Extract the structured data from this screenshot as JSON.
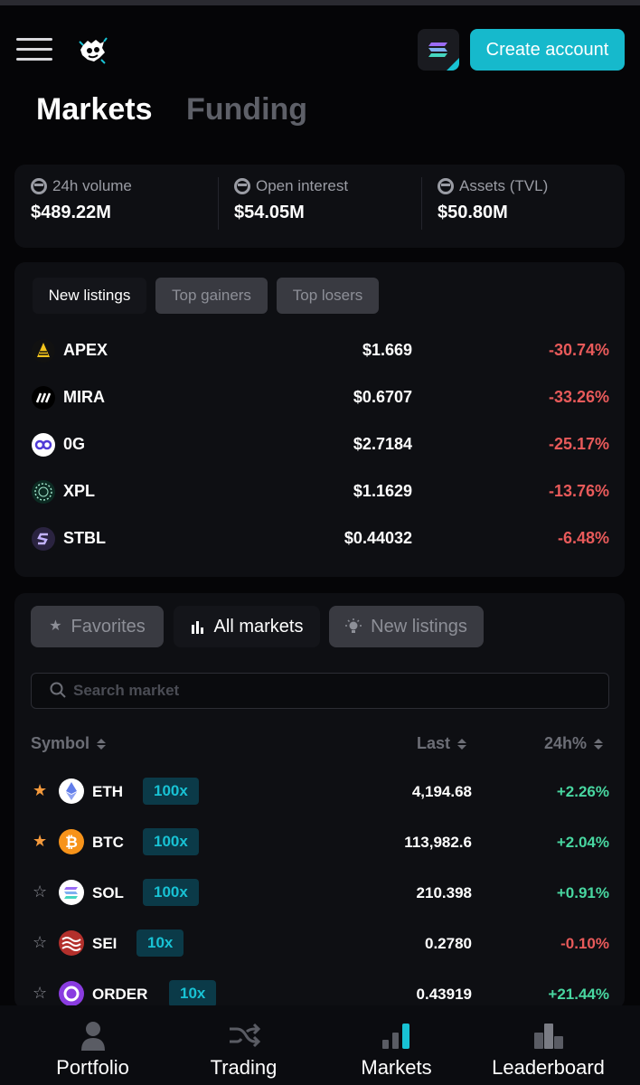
{
  "colors": {
    "accent": "#16b9cc",
    "positive": "#48d6a0",
    "negative": "#e85a5a",
    "favorite": "#f59a3c",
    "background": "#050507"
  },
  "header": {
    "create_account_label": "Create account",
    "menu_icon": "hamburger-icon",
    "logo_icon": "app-logo-icon",
    "network_icon": "solana-icon"
  },
  "page_tabs": [
    {
      "label": "Markets"
    },
    {
      "label": "Funding"
    }
  ],
  "stats": [
    {
      "label": "24h volume",
      "value": "$489.22M"
    },
    {
      "label": "Open interest",
      "value": "$54.05M"
    },
    {
      "label": "Assets (TVL)",
      "value": "$50.80M"
    }
  ],
  "listing_tabs": [
    {
      "label": "New listings"
    },
    {
      "label": "Top gainers"
    },
    {
      "label": "Top losers"
    }
  ],
  "listings": [
    {
      "symbol": "APEX",
      "price": "$1.669",
      "change": "-30.74%"
    },
    {
      "symbol": "MIRA",
      "price": "$0.6707",
      "change": "-33.26%"
    },
    {
      "symbol": "0G",
      "price": "$2.7184",
      "change": "-25.17%"
    },
    {
      "symbol": "XPL",
      "price": "$1.1629",
      "change": "-13.76%"
    },
    {
      "symbol": "STBL",
      "price": "$0.44032",
      "change": "-6.48%"
    }
  ],
  "market_tabs": [
    {
      "label": "Favorites"
    },
    {
      "label": "All markets"
    },
    {
      "label": "New listings"
    }
  ],
  "search": {
    "placeholder": "Search market"
  },
  "table": {
    "headers": {
      "symbol": "Symbol",
      "last": "Last",
      "change": "24h%"
    },
    "rows": [
      {
        "favorite": true,
        "symbol": "ETH",
        "leverage": "100x",
        "last": "4,194.68",
        "change": "+2.26%"
      },
      {
        "favorite": true,
        "symbol": "BTC",
        "leverage": "100x",
        "last": "113,982.6",
        "change": "+2.04%"
      },
      {
        "favorite": false,
        "symbol": "SOL",
        "leverage": "100x",
        "last": "210.398",
        "change": "+0.91%"
      },
      {
        "favorite": false,
        "symbol": "SEI",
        "leverage": "10x",
        "last": "0.2780",
        "change": "-0.10%"
      },
      {
        "favorite": false,
        "symbol": "ORDER",
        "leverage": "10x",
        "last": "0.43919",
        "change": "+21.44%"
      }
    ]
  },
  "bottom_nav": [
    {
      "label": "Portfolio",
      "icon": "user-icon"
    },
    {
      "label": "Trading",
      "icon": "shuffle-icon"
    },
    {
      "label": "Markets",
      "icon": "bar-chart-icon"
    },
    {
      "label": "Leaderboard",
      "icon": "podium-icon"
    }
  ]
}
